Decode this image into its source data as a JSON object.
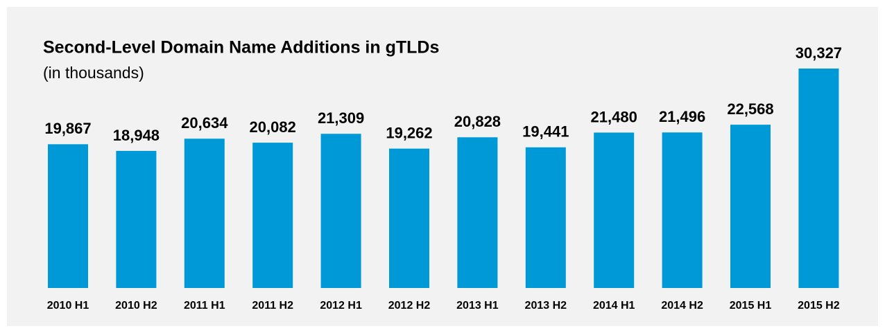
{
  "chart_data": {
    "type": "bar",
    "title": "Second-Level Domain Name Additions in gTLDs",
    "subtitle": "(in thousands)",
    "categories": [
      "2010 H1",
      "2010 H2",
      "2011 H1",
      "2011 H2",
      "2012 H1",
      "2012 H2",
      "2013 H1",
      "2013 H2",
      "2014 H1",
      "2014 H2",
      "2015 H1",
      "2015 H2"
    ],
    "values": [
      19867,
      18948,
      20634,
      20082,
      21309,
      19262,
      20828,
      19441,
      21480,
      21496,
      22568,
      30327
    ],
    "value_labels": [
      "19,867",
      "18,948",
      "20,634",
      "20,082",
      "21,309",
      "19,262",
      "20,828",
      "19,441",
      "21,480",
      "21,496",
      "22,568",
      "30,327"
    ],
    "color": "#0099d8"
  }
}
